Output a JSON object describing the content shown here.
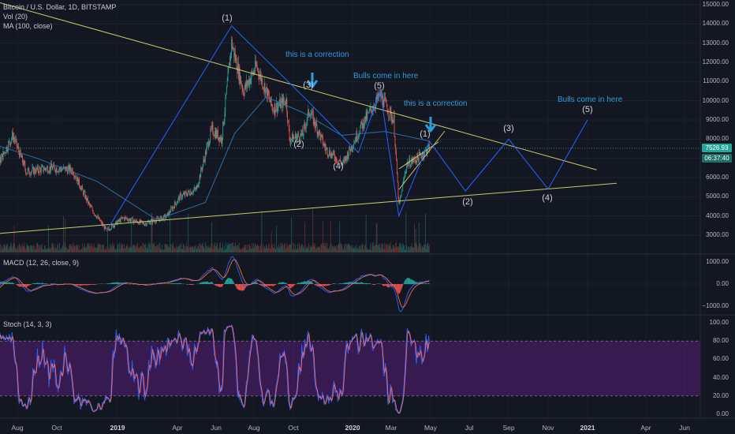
{
  "legend": {
    "symbol": "Bitcoin / U.S. Dollar, 1D, BITSTAMP",
    "vol": "Vol (20)",
    "ma": "MA (100, close)",
    "macd": "MACD (12, 26, close, 9)",
    "stoch": "Stoch (14, 3, 3)"
  },
  "price_tags": {
    "last": "7526.93",
    "countdown": "06:37:40"
  },
  "annotations": [
    {
      "id": "correction-1",
      "text": "this is a correction"
    },
    {
      "id": "bulls-1",
      "text": "Bulls come in here"
    },
    {
      "id": "correction-2",
      "text": "this is a correction"
    },
    {
      "id": "bulls-2",
      "text": "Bulls come in here"
    }
  ],
  "wave_labels": [
    {
      "id": "w1",
      "text": "(1)"
    },
    {
      "id": "w3",
      "text": "(3)"
    },
    {
      "id": "w2",
      "text": "(2)"
    },
    {
      "id": "w5",
      "text": "(5)"
    },
    {
      "id": "w4",
      "text": "(4)"
    },
    {
      "id": "w1b",
      "text": "(1)"
    },
    {
      "id": "f2",
      "text": "(2)"
    },
    {
      "id": "f3",
      "text": "(3)"
    },
    {
      "id": "f4",
      "text": "(4)"
    },
    {
      "id": "f5",
      "text": "(5)"
    }
  ],
  "colors": {
    "background": "#131722",
    "candle_up": "#26a69a",
    "candle_down": "#ef5350",
    "trendline": "#c8c86a",
    "wave_path": "#2962ff",
    "ma": "#2e6fa8",
    "annotation": "#2d9cdb",
    "stoch_k": "#2962ff",
    "stoch_d": "#ef6c6c",
    "stoch_band": "#7b1fa2"
  },
  "chart_data": [
    {
      "type": "candlestick",
      "title": "Bitcoin / U.S. Dollar, 1D, BITSTAMP",
      "x_ticks": [
        "Aug",
        "Oct",
        "2019",
        "Apr",
        "Jun",
        "Aug",
        "Oct",
        "2020",
        "Mar",
        "May",
        "Jul",
        "Sep",
        "Nov",
        "2021",
        "Apr",
        "Jun"
      ],
      "y_ticks": [
        3000,
        4000,
        5000,
        6000,
        7000,
        8000,
        9000,
        10000,
        11000,
        12000,
        13000,
        14000,
        15000
      ],
      "y_tick_labels": [
        "3000.00",
        "4000.00",
        "5000.00",
        "6000.00",
        "7000.00",
        "8000.00",
        "9000.00",
        "10000.00",
        "11000.00",
        "12000.00",
        "13000.00",
        "14000.00",
        "15000.00"
      ],
      "ylim": [
        2000,
        15000
      ],
      "close_path": [
        {
          "date": "2018-06-01",
          "close": 7500
        },
        {
          "date": "2018-06-25",
          "close": 6200
        },
        {
          "date": "2018-07-25",
          "close": 8200
        },
        {
          "date": "2018-08-15",
          "close": 6300
        },
        {
          "date": "2018-09-20",
          "close": 6500
        },
        {
          "date": "2018-10-25",
          "close": 6400
        },
        {
          "date": "2018-11-20",
          "close": 4500
        },
        {
          "date": "2018-12-15",
          "close": 3250
        },
        {
          "date": "2019-01-10",
          "close": 3900
        },
        {
          "date": "2019-02-10",
          "close": 3600
        },
        {
          "date": "2019-03-15",
          "close": 3950
        },
        {
          "date": "2019-04-05",
          "close": 5000
        },
        {
          "date": "2019-05-01",
          "close": 5400
        },
        {
          "date": "2019-05-25",
          "close": 8500
        },
        {
          "date": "2019-06-10",
          "close": 8000
        },
        {
          "date": "2019-06-26",
          "close": 13000
        },
        {
          "date": "2019-07-15",
          "close": 10500
        },
        {
          "date": "2019-08-05",
          "close": 11800
        },
        {
          "date": "2019-08-30",
          "close": 9600
        },
        {
          "date": "2019-09-20",
          "close": 10000
        },
        {
          "date": "2019-09-25",
          "close": 8000
        },
        {
          "date": "2019-10-15",
          "close": 8200
        },
        {
          "date": "2019-10-26",
          "close": 9500
        },
        {
          "date": "2019-11-20",
          "close": 7500
        },
        {
          "date": "2019-12-17",
          "close": 6700
        },
        {
          "date": "2020-01-15",
          "close": 8700
        },
        {
          "date": "2020-02-13",
          "close": 10300
        },
        {
          "date": "2020-03-05",
          "close": 9000
        },
        {
          "date": "2020-03-13",
          "close": 4500
        },
        {
          "date": "2020-03-25",
          "close": 6700
        },
        {
          "date": "2020-04-10",
          "close": 7000
        },
        {
          "date": "2020-04-29",
          "close": 7527
        }
      ],
      "ma100": [
        {
          "date": "2018-06-01",
          "value": 8000
        },
        {
          "date": "2018-09-01",
          "value": 7000
        },
        {
          "date": "2018-12-01",
          "value": 5800
        },
        {
          "date": "2019-03-01",
          "value": 3800
        },
        {
          "date": "2019-05-15",
          "value": 4700
        },
        {
          "date": "2019-07-01",
          "value": 8300
        },
        {
          "date": "2019-08-20",
          "value": 10200
        },
        {
          "date": "2019-10-15",
          "value": 9400
        },
        {
          "date": "2019-12-15",
          "value": 8200
        },
        {
          "date": "2020-02-20",
          "value": 8400
        },
        {
          "date": "2020-04-29",
          "value": 7900
        }
      ],
      "trendlines": [
        {
          "name": "descending resistance",
          "from": {
            "date": "2018-04-01",
            "price": 16000
          },
          "to": {
            "date": "2021-01-15",
            "price": 6400
          }
        },
        {
          "name": "ascending support",
          "from": {
            "date": "2018-06-01",
            "price": 3000
          },
          "to": {
            "date": "2021-02-15",
            "price": 5700
          }
        }
      ],
      "elliott_path": [
        {
          "date": "2018-12-15",
          "price": 3200
        },
        {
          "date": "2019-06-26",
          "price": 13900
        },
        {
          "date": "2019-10-20",
          "price": 10100
        },
        {
          "date": "2020-01-10",
          "price": 7300
        },
        {
          "date": "2020-02-13",
          "price": 10500
        },
        {
          "date": "2020-03-13",
          "price": 4000
        },
        {
          "date": "2020-04-29",
          "price": 7900
        },
        {
          "date": "2020-06-25",
          "price": 5300
        },
        {
          "date": "2020-09-01",
          "price": 8000
        },
        {
          "date": "2020-11-01",
          "price": 5400
        },
        {
          "date": "2021-01-01",
          "price": 9000
        }
      ]
    },
    {
      "type": "line",
      "title": "MACD (12, 26, close, 9)",
      "y_ticks": [
        -1000,
        0,
        1000
      ],
      "y_tick_labels": [
        "−1000.00",
        "0.00",
        "1000.00"
      ],
      "ylim": [
        -1100,
        1100
      ]
    },
    {
      "type": "line",
      "title": "Stoch (14, 3, 3)",
      "y_ticks": [
        0,
        20,
        40,
        60,
        80,
        100
      ],
      "y_tick_labels": [
        "0.00",
        "20.00",
        "40.00",
        "60.00",
        "80.00",
        "100.00"
      ],
      "ylim": [
        0,
        100
      ],
      "band": [
        20,
        80
      ]
    }
  ]
}
